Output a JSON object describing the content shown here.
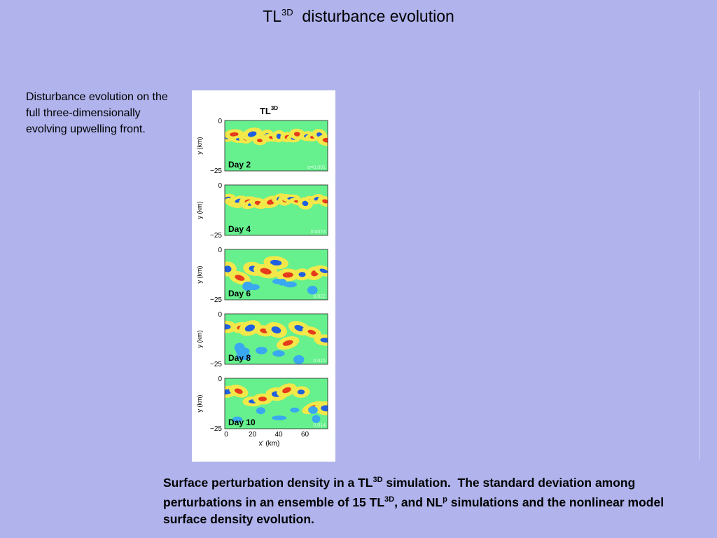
{
  "slide": {
    "title_main": "TL",
    "title_sup": "3D",
    "title_rest": "  disturbance evolution",
    "side_text": "Disturbance evolution on the full three-dimensionally evolving upwelling front.",
    "caption": {
      "p1": "Surface perturbation density in a TL",
      "sup1": "3D",
      "p2": " simulation.  The standard deviation among perturbations in an ensemble of 15 TL",
      "sup2": "3D",
      "p3": ", and NL",
      "sup3": "p",
      "p4": " simulations and the nonlinear model surface density evolution."
    }
  },
  "figure": {
    "title_main": "TL",
    "title_sup": "3D",
    "ylabel": "y (km)",
    "xlabel": "x' (km)",
    "y_tick_top": "0",
    "y_tick_bottom": "−25",
    "x_ticks": [
      "0",
      "20",
      "40",
      "60"
    ],
    "panels": [
      {
        "day": "Day 2",
        "std": "σ=0.001"
      },
      {
        "day": "Day 4",
        "std": "0.0073"
      },
      {
        "day": "Day 6",
        "std": "0.022"
      },
      {
        "day": "Day 8",
        "std": "0.015"
      },
      {
        "day": "Day 10",
        "std": "0.014"
      }
    ],
    "colors": {
      "background": "#66f08e",
      "positive": "#e63a1c",
      "negative": "#1f5fe0",
      "contour_light": "#f2e84a"
    }
  }
}
